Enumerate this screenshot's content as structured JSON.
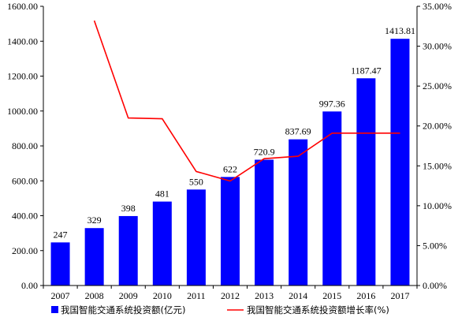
{
  "chart_data": {
    "type": "bar",
    "title": "",
    "xlabel": "",
    "ylabel": "",
    "categories": [
      "2007",
      "2008",
      "2009",
      "2010",
      "2011",
      "2012",
      "2013",
      "2014",
      "2015",
      "2016",
      "2017"
    ],
    "series": [
      {
        "name": "我国智能交通系统投资额(亿元)",
        "type": "bar",
        "axis": "left",
        "color": "#0000ff",
        "values": [
          247,
          329,
          398,
          481,
          550,
          622,
          720.9,
          837.69,
          997.36,
          1187.47,
          1413.81
        ],
        "labels": [
          "247",
          "329",
          "398",
          "481",
          "550",
          "622",
          "720.9",
          "837.69",
          "997.36",
          "1187.47",
          "1413.81"
        ]
      },
      {
        "name": "我国智能交通系统投资额增长率(%)",
        "type": "line",
        "axis": "right",
        "color": "#ff0000",
        "values": [
          null,
          33.2,
          21.0,
          20.9,
          14.3,
          13.1,
          15.9,
          16.2,
          19.1,
          19.1,
          19.1
        ]
      }
    ],
    "ylim": [
      0,
      1600
    ],
    "y2lim": [
      0,
      35
    ],
    "yticks": [
      "0.00",
      "200.00",
      "400.00",
      "600.00",
      "800.00",
      "1000.00",
      "1200.00",
      "1400.00",
      "1600.00"
    ],
    "y2ticks": [
      "0.00%",
      "5.00%",
      "10.00%",
      "15.00%",
      "20.00%",
      "25.00%",
      "30.00%",
      "35.00%"
    ],
    "legend": "bottom",
    "grid": false
  }
}
